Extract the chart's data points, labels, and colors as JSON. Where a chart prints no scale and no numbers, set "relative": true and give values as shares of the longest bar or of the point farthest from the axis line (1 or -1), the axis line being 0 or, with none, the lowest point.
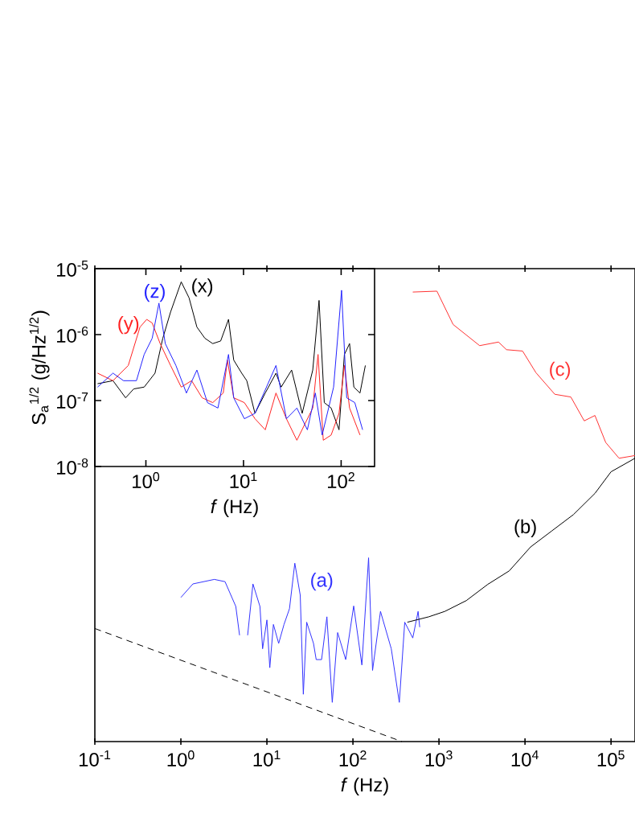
{
  "chart_data": [
    {
      "type": "line",
      "relative": true,
      "log": "x",
      "xlabel": "*f* (Hz)",
      "xlim": [
        0.1,
        190000
      ],
      "xticks": [
        {
          "value": 0.1,
          "label": "10$^{-1}$"
        },
        {
          "value": 1,
          "label": "10$^{0}$"
        },
        {
          "value": 10,
          "label": "10$^{1}$"
        },
        {
          "value": 100,
          "label": "10$^{2}$"
        },
        {
          "value": 1000,
          "label": "10$^{3}$"
        },
        {
          "value": 10000,
          "label": "10$^{4}$"
        },
        {
          "value": 100000,
          "label": "10$^{5}$"
        }
      ],
      "series": [
        {
          "color": "#3333ff",
          "x": [
            1.0,
            1.38,
            2.45,
            3.26,
            4.35,
            4.81,
            5.4,
            5.97,
            6.88,
            8.3,
            8.91,
            10,
            10.8,
            11.9,
            13.7,
            15.8,
            18.3,
            21.1,
            24.4,
            26.5,
            29.0,
            34.8,
            37.4,
            43.2,
            49.8,
            57.5,
            66.4,
            82.4,
            102,
            127,
            152,
            169,
            209,
            279,
            346,
            400,
            496,
            572,
            597
          ],
          "values": [
            0.32,
            0.35,
            0.36,
            0.355,
            0.3,
            0.236,
            null,
            0.236,
            0.35,
            0.3,
            0.206,
            0.27,
            0.164,
            0.26,
            0.218,
            0.26,
            0.295,
            0.396,
            0.325,
            0.105,
            0.265,
            0.218,
            0.182,
            0.182,
            0.277,
            0.087,
            0.242,
            0.182,
            0.301,
            0.17,
            0.408,
            0.158,
            0.289,
            0.206,
            0.087,
            0.265,
            0.23,
            0.289,
            0.254
          ]
        },
        {
          "color": "#000000",
          "x": [
            429,
            762,
            1170,
            2080,
            3690,
            6560,
            11600,
            20600,
            36600,
            65000,
            100000,
            190000
          ],
          "values": [
            0.265,
            0.277,
            0.289,
            0.313,
            0.349,
            0.379,
            0.432,
            0.468,
            0.504,
            0.551,
            0.599,
            0.629
          ]
        },
        {
          "color": "#ff3333",
          "x": [
            496,
            946,
            1460,
            2970,
            4920,
            6100,
            9370,
            13400,
            22200,
            34100,
            48800,
            65000,
            86700,
            124000,
            190000
          ],
          "values": [
            0.998,
            1.0,
            0.926,
            0.879,
            0.887,
            0.87,
            0.867,
            0.819,
            0.771,
            0.765,
            0.712,
            0.724,
            0.664,
            0.629,
            0.635
          ]
        },
        {
          "color": "#000000",
          "line_style": "dashed",
          "x": [
            0.1,
            370
          ],
          "values": [
            0.251,
            0
          ]
        }
      ],
      "annotations": [
        "(a)",
        "(b)",
        "(c)"
      ]
    },
    {
      "type": "line",
      "log": "xy",
      "xlabel": "*f* (Hz)",
      "ylabel": "S$_{a}$$^{1/2}$ (g/Hz$^{1/2}$)",
      "xlim": [
        0.3,
        220
      ],
      "ylim": [
        1e-08,
        1e-05
      ],
      "xticks": [
        {
          "value": 1,
          "label": "10$^{0}$"
        },
        {
          "value": 10,
          "label": "10$^{1}$"
        },
        {
          "value": 100,
          "label": "10$^{2}$"
        }
      ],
      "yticks": [
        {
          "value": 1e-08,
          "label": "10$^{-8}$"
        },
        {
          "value": 1e-07,
          "label": "10$^{-7}$"
        },
        {
          "value": 1e-06,
          "label": "10$^{-6}$"
        },
        {
          "value": 1e-05,
          "label": "10$^{-5}$"
        }
      ],
      "series": [
        {
          "color": "#000000",
          "x": [
            0.32,
            0.46,
            0.62,
            0.75,
            0.96,
            1.24,
            1.49,
            1.79,
            2.3,
            2.77,
            3.33,
            4.02,
            4.84,
            5.83,
            7.02,
            7.94,
            9.58,
            10.8,
            13.1,
            16.7,
            21.5,
            24.3,
            31.1,
            39.9,
            51.2,
            59.4,
            67.2,
            79.0,
            95.1,
            108,
            122,
            135,
            156,
            177
          ],
          "values": [
            1.8e-07,
            2e-07,
            1.1e-07,
            1.5e-07,
            1.6e-07,
            2.6e-07,
            8.8e-07,
            2.2e-06,
            6.3e-06,
            3.6e-06,
            1.3e-06,
            8.8e-07,
            7.3e-07,
            8e-07,
            1.7e-06,
            4.1e-07,
            2.6e-07,
            2e-07,
            6.4e-08,
            1.3e-07,
            2.6e-07,
            1.6e-07,
            2.9e-07,
            6.4e-08,
            2.9e-07,
            3.3e-06,
            9.3e-08,
            7.7e-08,
            3.6e-08,
            5e-07,
            7.3e-07,
            1.6e-07,
            1.3e-07,
            3.4e-07
          ]
        },
        {
          "color": "#ff2222",
          "x": [
            0.32,
            0.46,
            0.66,
            0.87,
            1.02,
            1.16,
            1.4,
            1.79,
            2.3,
            2.94,
            3.77,
            4.84,
            6.2,
            6.84,
            7.94,
            10.2,
            13.1,
            16.7,
            21.5,
            27.5,
            35.2,
            51.2,
            58.0,
            65.6,
            79.0,
            95.1,
            108,
            122,
            156
          ],
          "values": [
            2.6e-07,
            2e-07,
            3.4e-07,
            1.3e-06,
            1.7e-06,
            1.5e-06,
            7.3e-07,
            3.4e-07,
            1.6e-07,
            2e-07,
            1.1e-07,
            9.3e-08,
            1.3e-07,
            4.1e-07,
            1.1e-07,
            9.3e-08,
            5.3e-08,
            3.6e-08,
            1.3e-07,
            5.3e-08,
            2.5e-08,
            7.7e-08,
            5e-07,
            2.5e-08,
            3e-08,
            6.4e-08,
            3.4e-07,
            7.7e-08,
            3e-08
          ]
        },
        {
          "color": "#2222ff",
          "x": [
            0.32,
            0.46,
            0.59,
            0.8,
            0.96,
            1.16,
            1.36,
            1.58,
            2.03,
            2.6,
            3.33,
            4.27,
            5.47,
            7.02,
            7.94,
            10.2,
            13.1,
            21.5,
            27.5,
            35.2,
            45.1,
            54.4,
            63.9,
            83.7,
            101,
            114,
            138,
            166
          ],
          "values": [
            1.6e-07,
            2.6e-07,
            2e-07,
            2e-07,
            5e-07,
            8.8e-07,
            3e-06,
            7.3e-07,
            3.4e-07,
            1.3e-07,
            2.9e-07,
            9.3e-08,
            7.7e-08,
            5e-07,
            1.1e-07,
            5.3e-08,
            6.4e-08,
            3.4e-07,
            5.3e-08,
            7.7e-08,
            3.6e-08,
            1.3e-07,
            3e-08,
            1.6e-07,
            4.7e-06,
            1.1e-07,
            9.3e-08,
            3.6e-08
          ]
        }
      ],
      "annotations": [
        "(x)",
        "(y)",
        "(z)"
      ]
    }
  ]
}
